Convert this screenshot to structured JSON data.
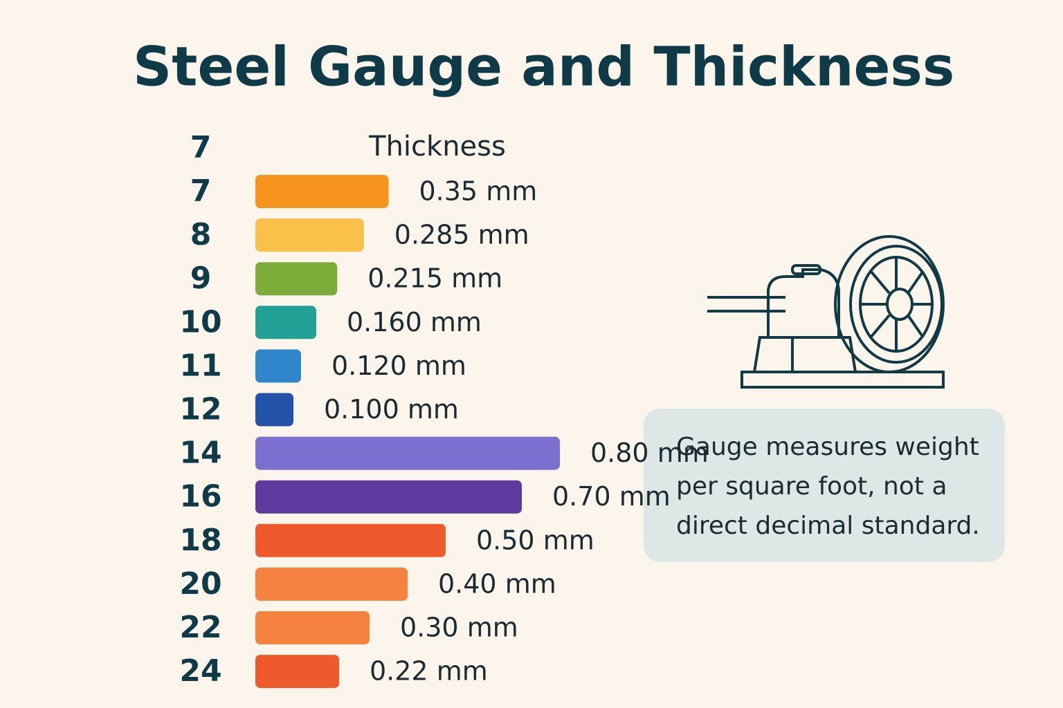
{
  "chart_data": {
    "type": "bar",
    "orientation": "horizontal",
    "title": "Steel Gauge and Thickness",
    "header_gauge": "7",
    "value_header": "Thickness",
    "categories": [
      "7",
      "8",
      "9",
      "10",
      "11",
      "12",
      "14",
      "16",
      "18",
      "20",
      "22",
      "24"
    ],
    "values": [
      0.35,
      0.285,
      0.215,
      0.16,
      0.12,
      0.1,
      0.8,
      0.7,
      0.5,
      0.4,
      0.3,
      0.22
    ],
    "value_labels": [
      "0.35 mm",
      "0.285 mm",
      "0.215 mm",
      "0.160 mm",
      "0.120 mm",
      "0.100 mm",
      "0.80 mm",
      "0.70 mm",
      "0.50 mm",
      "0.40 mm",
      "0.30 mm",
      "0.22 mm"
    ],
    "colors": [
      "#f7941d",
      "#f9c04a",
      "#7cac3a",
      "#22a197",
      "#2f86cb",
      "#2352a8",
      "#7b6fd0",
      "#5e3a9e",
      "#ee5a2c",
      "#f5823f",
      "#f5823f",
      "#ee5a2c"
    ],
    "note": [
      "Gauge measures weight",
      "per square foot, not a",
      "direct decimal standard."
    ]
  }
}
